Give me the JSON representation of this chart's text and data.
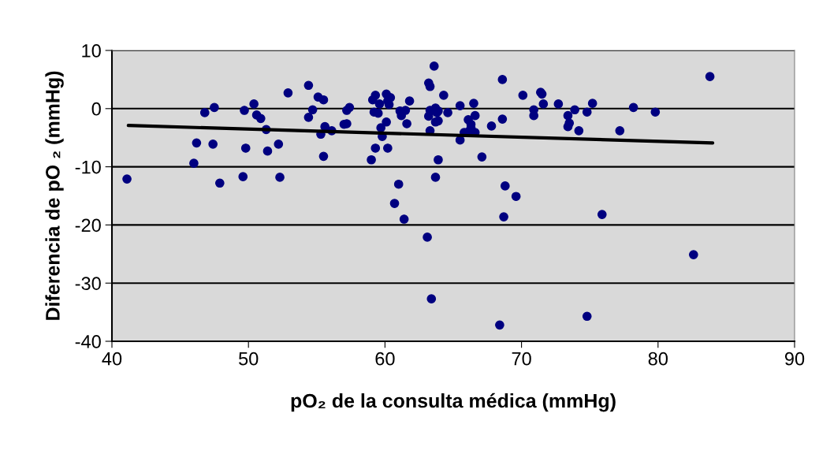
{
  "chart_data": {
    "type": "scatter",
    "xlabel": "pO₂ de la consulta médica (mmHg)",
    "ylabel": "Diferencia de pO ₂ (mmHg)",
    "xlim": [
      40,
      90
    ],
    "xticks": [
      40,
      50,
      60,
      70,
      80,
      90
    ],
    "ylim": [
      -40,
      10
    ],
    "yticks": [
      -40,
      -30,
      -20,
      -10,
      0,
      10
    ],
    "grid": "y",
    "legend": false,
    "marker": "circle",
    "series": [
      {
        "color": "#000080",
        "x": [
          41.1,
          46.0,
          46.2,
          46.8,
          47.4,
          47.5,
          47.9,
          49.7,
          49.6,
          49.8,
          50.4,
          50.6,
          50.9,
          51.3,
          51.4,
          52.2,
          52.3,
          52.9,
          54.4,
          54.4,
          54.7,
          55.1,
          55.3,
          55.5,
          55.6,
          55.5,
          56.1,
          57.0,
          57.2,
          57.2,
          57.4,
          59.0,
          59.2,
          59.1,
          59.3,
          59.3,
          59.5,
          59.6,
          59.7,
          59.8,
          60.1,
          60.1,
          60.2,
          60.2,
          60.3,
          60.4,
          60.7,
          61.0,
          61.1,
          61.2,
          61.4,
          61.5,
          61.6,
          61.8,
          63.1,
          63.2,
          63.2,
          63.3,
          63.3,
          63.3,
          63.4,
          63.6,
          63.7,
          63.9,
          63.8,
          63.7,
          63.9,
          63.7,
          63.9,
          64.3,
          64.6,
          65.5,
          65.5,
          65.8,
          66.1,
          66.1,
          66.3,
          66.3,
          66.5,
          66.6,
          66.6,
          67.1,
          67.8,
          68.6,
          68.6,
          68.8,
          68.7,
          68.4,
          69.6,
          70.1,
          70.9,
          70.9,
          71.4,
          71.5,
          71.6,
          72.7,
          73.4,
          73.4,
          73.5,
          73.9,
          74.2,
          74.8,
          74.8,
          75.2,
          75.9,
          77.2,
          78.2,
          79.8,
          82.6,
          83.8
        ],
        "values": [
          -12.1,
          -9.4,
          -5.9,
          -0.7,
          -6.1,
          0.2,
          -12.8,
          -0.3,
          -11.7,
          -6.8,
          0.8,
          -1.1,
          -1.7,
          -3.6,
          -7.3,
          -6.1,
          -11.8,
          2.7,
          4.0,
          -1.5,
          -0.2,
          2.0,
          -4.4,
          1.5,
          -3.1,
          -8.2,
          -3.8,
          -2.7,
          -0.3,
          -2.6,
          0.2,
          -8.8,
          -0.6,
          1.5,
          2.3,
          -6.8,
          -0.8,
          0.8,
          -3.3,
          -4.8,
          2.5,
          -2.3,
          1.3,
          -6.8,
          0.7,
          1.9,
          -16.3,
          -13.0,
          -0.4,
          -1.2,
          -19.0,
          -0.3,
          -2.6,
          1.3,
          -22.1,
          -1.3,
          4.4,
          3.8,
          -3.8,
          -0.3,
          -32.7,
          7.3,
          -2.3,
          -2.1,
          -0.7,
          -11.8,
          -8.8,
          0.1,
          -0.4,
          2.3,
          -0.7,
          -5.4,
          0.5,
          -4.1,
          -4.0,
          -1.9,
          -2.7,
          -3.3,
          0.9,
          -1.2,
          -4.1,
          -8.3,
          -3.0,
          5.0,
          -1.8,
          -13.3,
          -18.6,
          -37.2,
          -15.1,
          2.3,
          -0.2,
          -1.2,
          2.8,
          2.5,
          0.8,
          0.8,
          -1.2,
          -3.1,
          -2.5,
          -0.2,
          -3.8,
          -0.6,
          -35.7,
          0.9,
          -18.2,
          -3.8,
          0.2,
          -0.6,
          -25.1,
          5.5
        ]
      },
      {
        "type": "line",
        "color": "#000000",
        "marker": "none",
        "line_style": "solid",
        "x": [
          41.2,
          84.0
        ],
        "values": [
          -2.9,
          -5.9
        ]
      }
    ]
  }
}
